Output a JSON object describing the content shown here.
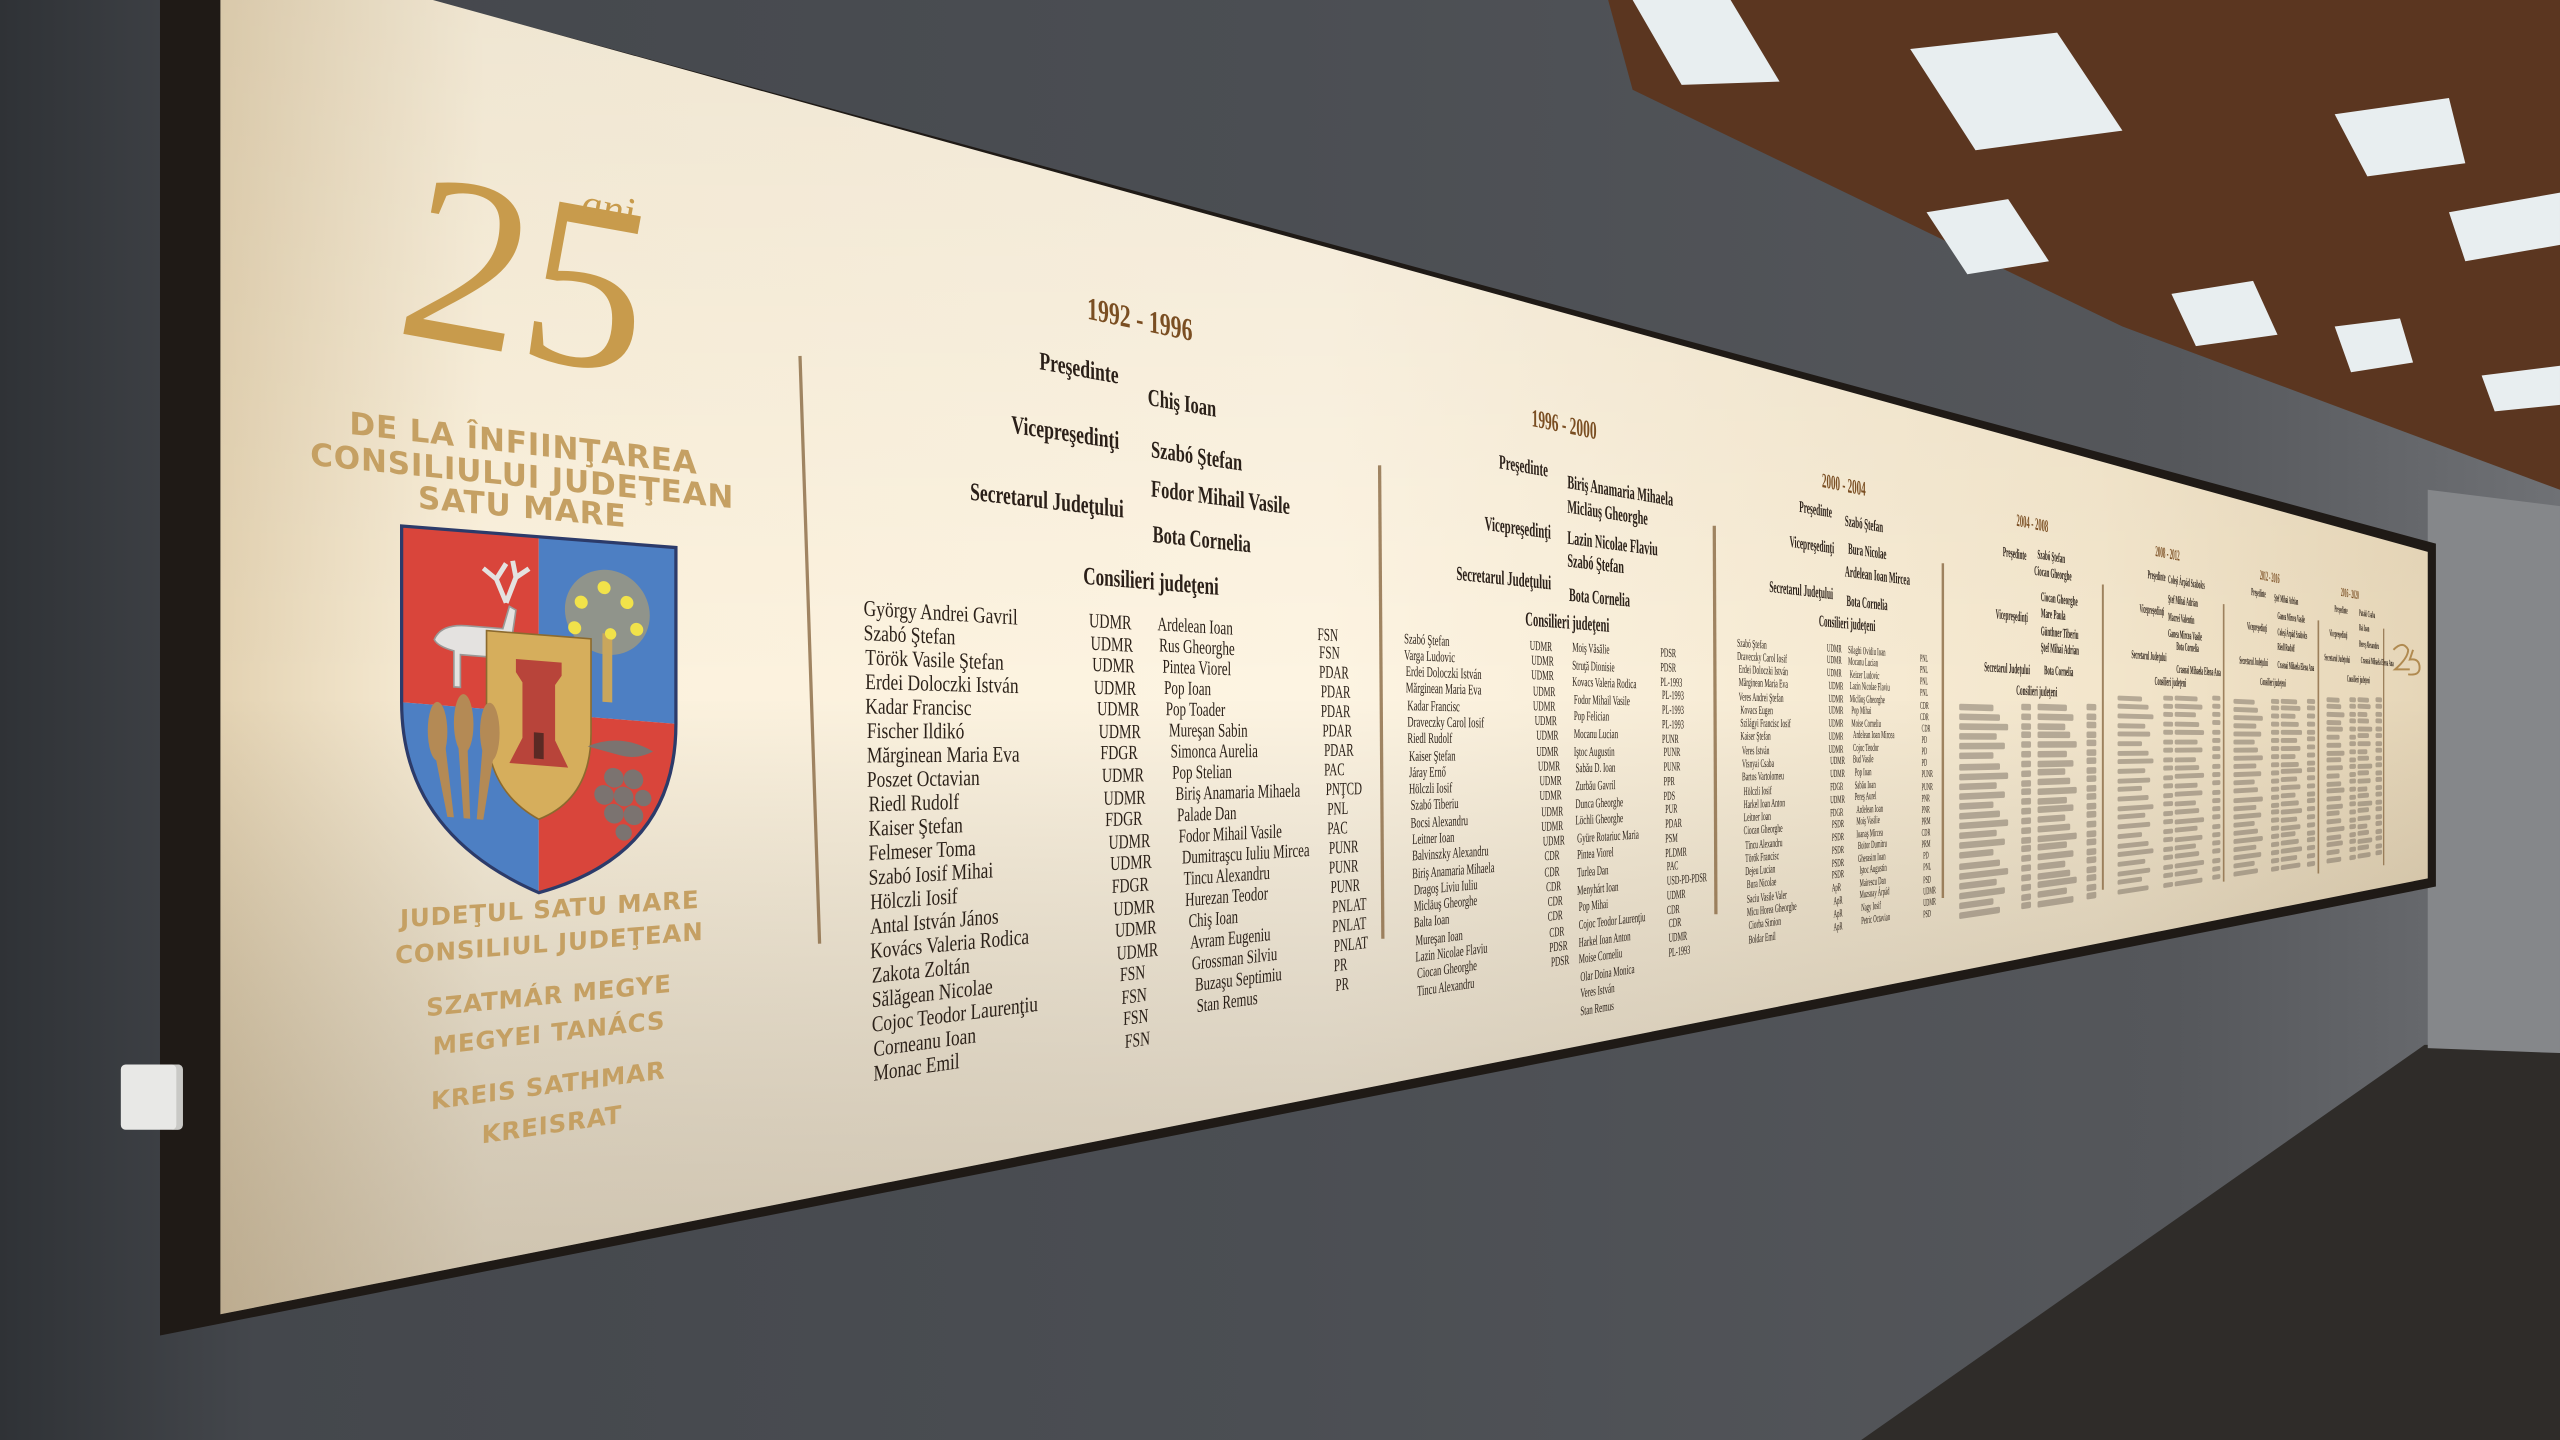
{
  "colors": {
    "plaque": "#f7ecd6",
    "frame": "#1f1a16",
    "gold": "#c5a063",
    "year": "#7a4e22",
    "text": "#2a1f18",
    "wall": "#4b4e53",
    "ceiling_wood": "#6b3f22"
  },
  "left_panel": {
    "anniversary_number": "25",
    "anniversary_suffix": "ani",
    "heading_lines": [
      "DE LA ÎNFIINŢAREA",
      "CONSILIULUI JUDEŢEAN",
      "SATU MARE"
    ],
    "emblem": "coat-of-arms",
    "footer_lines": [
      "JUDEŢUL SATU MARE",
      "CONSILIUL JUDEŢEAN",
      "SZATMÁR MEGYE",
      "MEGYEI TANÁCS",
      "KREIS SATHMAR",
      "KREISRAT"
    ]
  },
  "labels": {
    "president": "Preşedinte",
    "vice_presidents": "Vicepreşedinţi",
    "secretary": "Secretarul Judeţului",
    "councillors": "Consilieri judeţeni"
  },
  "terms": [
    {
      "years": "1992 - 1996",
      "president": [
        "Chiş Ioan"
      ],
      "vice_presidents": [
        "Szabó Ştefan",
        "Fodor Mihail Vasile"
      ],
      "secretary": [
        "Bota Cornelia"
      ],
      "councillors": [
        {
          "names": [
            "György Andrei Gavril",
            "Szabó Ştefan",
            "Török Vasile Ştefan",
            "Erdei Doloczki István",
            "Kadar Francisc",
            "Fischer Ildikó",
            "Mărginean Maria Eva",
            "Poszet Octavian",
            "Riedl Rudolf",
            "Kaiser Ştefan",
            "Felmeser Toma",
            "Szabó Iosif Mihai",
            "Hölczli Iosif",
            "Antal István János",
            "Kovács Valeria Rodica",
            "Zakota Zoltán",
            "Sălăgean Nicolae",
            "Cojoc Teodor Laurenţiu",
            "Corneanu Ioan",
            "Monac Emil"
          ],
          "parties": [
            "UDMR",
            "UDMR",
            "UDMR",
            "UDMR",
            "UDMR",
            "UDMR",
            "FDGR",
            "UDMR",
            "UDMR",
            "FDGR",
            "UDMR",
            "UDMR",
            "FDGR",
            "UDMR",
            "UDMR",
            "UDMR",
            "FSN",
            "FSN",
            "FSN",
            "FSN"
          ]
        },
        {
          "names": [
            "Ardelean Ioan",
            "Rus Gheorghe",
            "Pintea Viorel",
            "Pop Ioan",
            "Pop Toader",
            "Mureşan Sabin",
            "Simonca Aurelia",
            "Pop Stelian",
            "Biriş Anamaria Mihaela",
            "Palade Dan",
            "Fodor Mihail Vasile",
            "Dumitraşcu Iuliu Mircea",
            "Tincu Alexandru",
            "Hurezan Teodor",
            "Chiş Ioan",
            "Avram Eugeniu",
            "Grossman Silviu",
            "Buzaşu Septimiu",
            "Stan Remus"
          ],
          "parties": [
            "FSN",
            "FSN",
            "PDAR",
            "PDAR",
            "PDAR",
            "PDAR",
            "PDAR",
            "PAC",
            "PNŢCD",
            "PNL",
            "PAC",
            "PUNR",
            "PUNR",
            "PUNR",
            "PNLAT",
            "PNLAT",
            "PNLAT",
            "PR",
            "PR"
          ]
        }
      ]
    },
    {
      "years": "1996 - 2000",
      "president": [
        "Biriş Anamaria Mihaela",
        "Micläuş Gheorghe"
      ],
      "vice_presidents": [
        "Lazin Nicolae Flaviu",
        "Szabó Ştefan"
      ],
      "secretary": [
        "Bota Cornelia"
      ],
      "councillors": [
        {
          "names": [
            "Szabó Ştefan",
            "Varga Ludovic",
            "Erdei Doloczki István",
            "Mărginean Maria Eva",
            "Kadar Francisc",
            "Draveczky Carol Iosif",
            "Riedl Rudolf",
            "Kaiser Ştefan",
            "Járay Ernő",
            "Hölczli Iosif",
            "Szabó Tiberiu",
            "Bocsi Alexandru",
            "Leitner Ioan",
            "Balvinszky Alexandru",
            "Biriş Anamaria Mihaela",
            "Dragoş Liviu Iuliu",
            "Micläuş Gheorghe",
            "Balta Ioan",
            "Mureşan Ioan",
            "Lazin Nicolae Flaviu",
            "Ciocan Gheorghe",
            "Tincu Alexandru"
          ],
          "parties": [
            "UDMR",
            "UDMR",
            "UDMR",
            "UDMR",
            "UDMR",
            "UDMR",
            "UDMR",
            "UDMR",
            "UDMR",
            "UDMR",
            "UDMR",
            "UDMR",
            "UDMR",
            "UDMR",
            "CDR",
            "CDR",
            "CDR",
            "CDR",
            "CDR",
            "CDR",
            "PDSR",
            "PDSR"
          ]
        },
        {
          "names": [
            "Moiş Văsălie",
            "Struţă Dionisie",
            "Kovacs Valeria Rodica",
            "Fodor Mihail Vasile",
            "Pop Felician",
            "Mocanu Lucian",
            "Iştoc Augustin",
            "Sabău D. Ioan",
            "Zurbău Gavril",
            "Dunca Gheorghe",
            "Löchli Gheorghe",
            "Gyüre Rotariuc Maria",
            "Pintea Viorel",
            "Turlea Dan",
            "Menyhárt Ioan",
            "Pop Mihai",
            "Cojoc Teodor Laurenţiu",
            "Harkel Ioan Anton",
            "Moise Corneliu",
            "Olar Doina Monica",
            "Veres István",
            "Stan Remus"
          ],
          "parties": [
            "PDSR",
            "PDSR",
            "PL-1993",
            "PL-1993",
            "PL-1993",
            "PL-1993",
            "PUNR",
            "PUNR",
            "PUNR",
            "PPR",
            "PDS",
            "PUR",
            "PDAR",
            "PSM",
            "PLDMR",
            "PAC",
            "USD-PD-PDSR",
            "UDMR",
            "CDR",
            "CDR",
            "UDMR",
            "PL-1993"
          ]
        }
      ]
    },
    {
      "years": "2000 - 2004",
      "president": [
        "Szabó Ştefan"
      ],
      "vice_presidents": [
        "Bura Nicolae",
        "Ardelean Ioan Mircea"
      ],
      "secretary": [
        "Bota Cornelia"
      ],
      "councillors": [
        {
          "names": [
            "Szabó Ştefan",
            "Draveczky Carol Iosif",
            "Erdei Doloczki István",
            "Mărginean Maria Eva",
            "Veres Andrei Ştefan",
            "Kovacs Eugen",
            "Szilágyi Francisc Iosif",
            "Kaiser Ştefan",
            "Veres István",
            "Visnyai Csaba",
            "Bartos Vartolomeu",
            "Hölczli Iosif",
            "Harkel Ioan Anton",
            "Leitner Ioan",
            "Ciocan Gheorghe",
            "Tincu Alexandru",
            "Török Francisc",
            "Dejeu Lucian",
            "Bura Nicolae",
            "Saciu Vasile Valer",
            "Micu Horea Gheorghe",
            "Ciorba Simion",
            "Boldar Emil"
          ],
          "parties": [
            "UDMR",
            "UDMR",
            "UDMR",
            "UDMR",
            "UDMR",
            "UDMR",
            "UDMR",
            "UDMR",
            "UDMR",
            "UDMR",
            "UDMR",
            "FDGR",
            "UDMR",
            "FDGR",
            "PSDR",
            "PSDR",
            "PSDR",
            "PSDR",
            "PSDR",
            "ApR",
            "ApR",
            "ApR",
            "ApR"
          ]
        },
        {
          "names": [
            "Silaghi Ovidiu Ioan",
            "Mocanu Lucian",
            "Keizer Ludovic",
            "Lazin Nicolae Flaviu",
            "Miclăuş Gheorghe",
            "Pop Mihai",
            "Moise Corneliu",
            "Ardelean Ioan Mircea",
            "Cojoc Teodor",
            "Bud Vasile",
            "Pop Ioan",
            "Sabău Ioan",
            "Pereş Aurel",
            "Ardelean Ioan",
            "Moiş Vasilie",
            "Ioanaş Mircea",
            "Boitor Dumitru",
            "Gherasim Ioan",
            "Iştoc Augustin",
            "Mairescu Dan",
            "Muzsnay Árpád",
            "Nagy Iosif",
            "Petric Octavian"
          ],
          "parties": [
            "PNL",
            "PNL",
            "PNL",
            "PNL",
            "CDR",
            "CDR",
            "CDR",
            "PD",
            "PD",
            "PD",
            "PUNR",
            "PUNR",
            "PNR",
            "PNR",
            "PRM",
            "CDR",
            "PRM",
            "PD",
            "PNL",
            "PSD",
            "UDMR",
            "UDMR",
            "PSD"
          ]
        }
      ]
    },
    {
      "years": "2004 - 2008",
      "president": [
        "Szabó Ştefan",
        "Ciocan Gheorghe"
      ],
      "vice_presidents": [
        "Ciocan Gheorghe",
        "Mare Paula",
        "Günthner Tiberiu",
        "Ştef Mihai Adrian"
      ],
      "secretary": [
        "Bota Cornelia"
      ],
      "councillors": []
    },
    {
      "years": "2008 - 2012",
      "president": [
        "Coleşi Árpád Szabolcs"
      ],
      "vice_presidents": [
        "Ştef Mihai Adrian",
        "Macrei Valentin",
        "Ganea Mircea Vasile"
      ],
      "secretary": [
        "Bota Cornelia",
        "Crasnai Mihaela Elena Ana"
      ],
      "councillors": []
    },
    {
      "years": "2012 - 2016",
      "president": [
        "Ştef Mihai Adrian"
      ],
      "vice_presidents": [
        "Ganea Mircea Vasile",
        "Coleşi Árpád Szabolcs",
        "Riedl Rudolf"
      ],
      "secretary": [
        "Crasnai Mihaela Elena Ana"
      ],
      "councillors": []
    },
    {
      "years": "2016 - 2020",
      "president": [
        "Pataki Csaba"
      ],
      "vice_presidents": [
        "Bai Ioan",
        "Bereş Alexandru"
      ],
      "secretary": [
        "Crasnai Mihaela Elena Ana"
      ],
      "councillors": []
    }
  ]
}
